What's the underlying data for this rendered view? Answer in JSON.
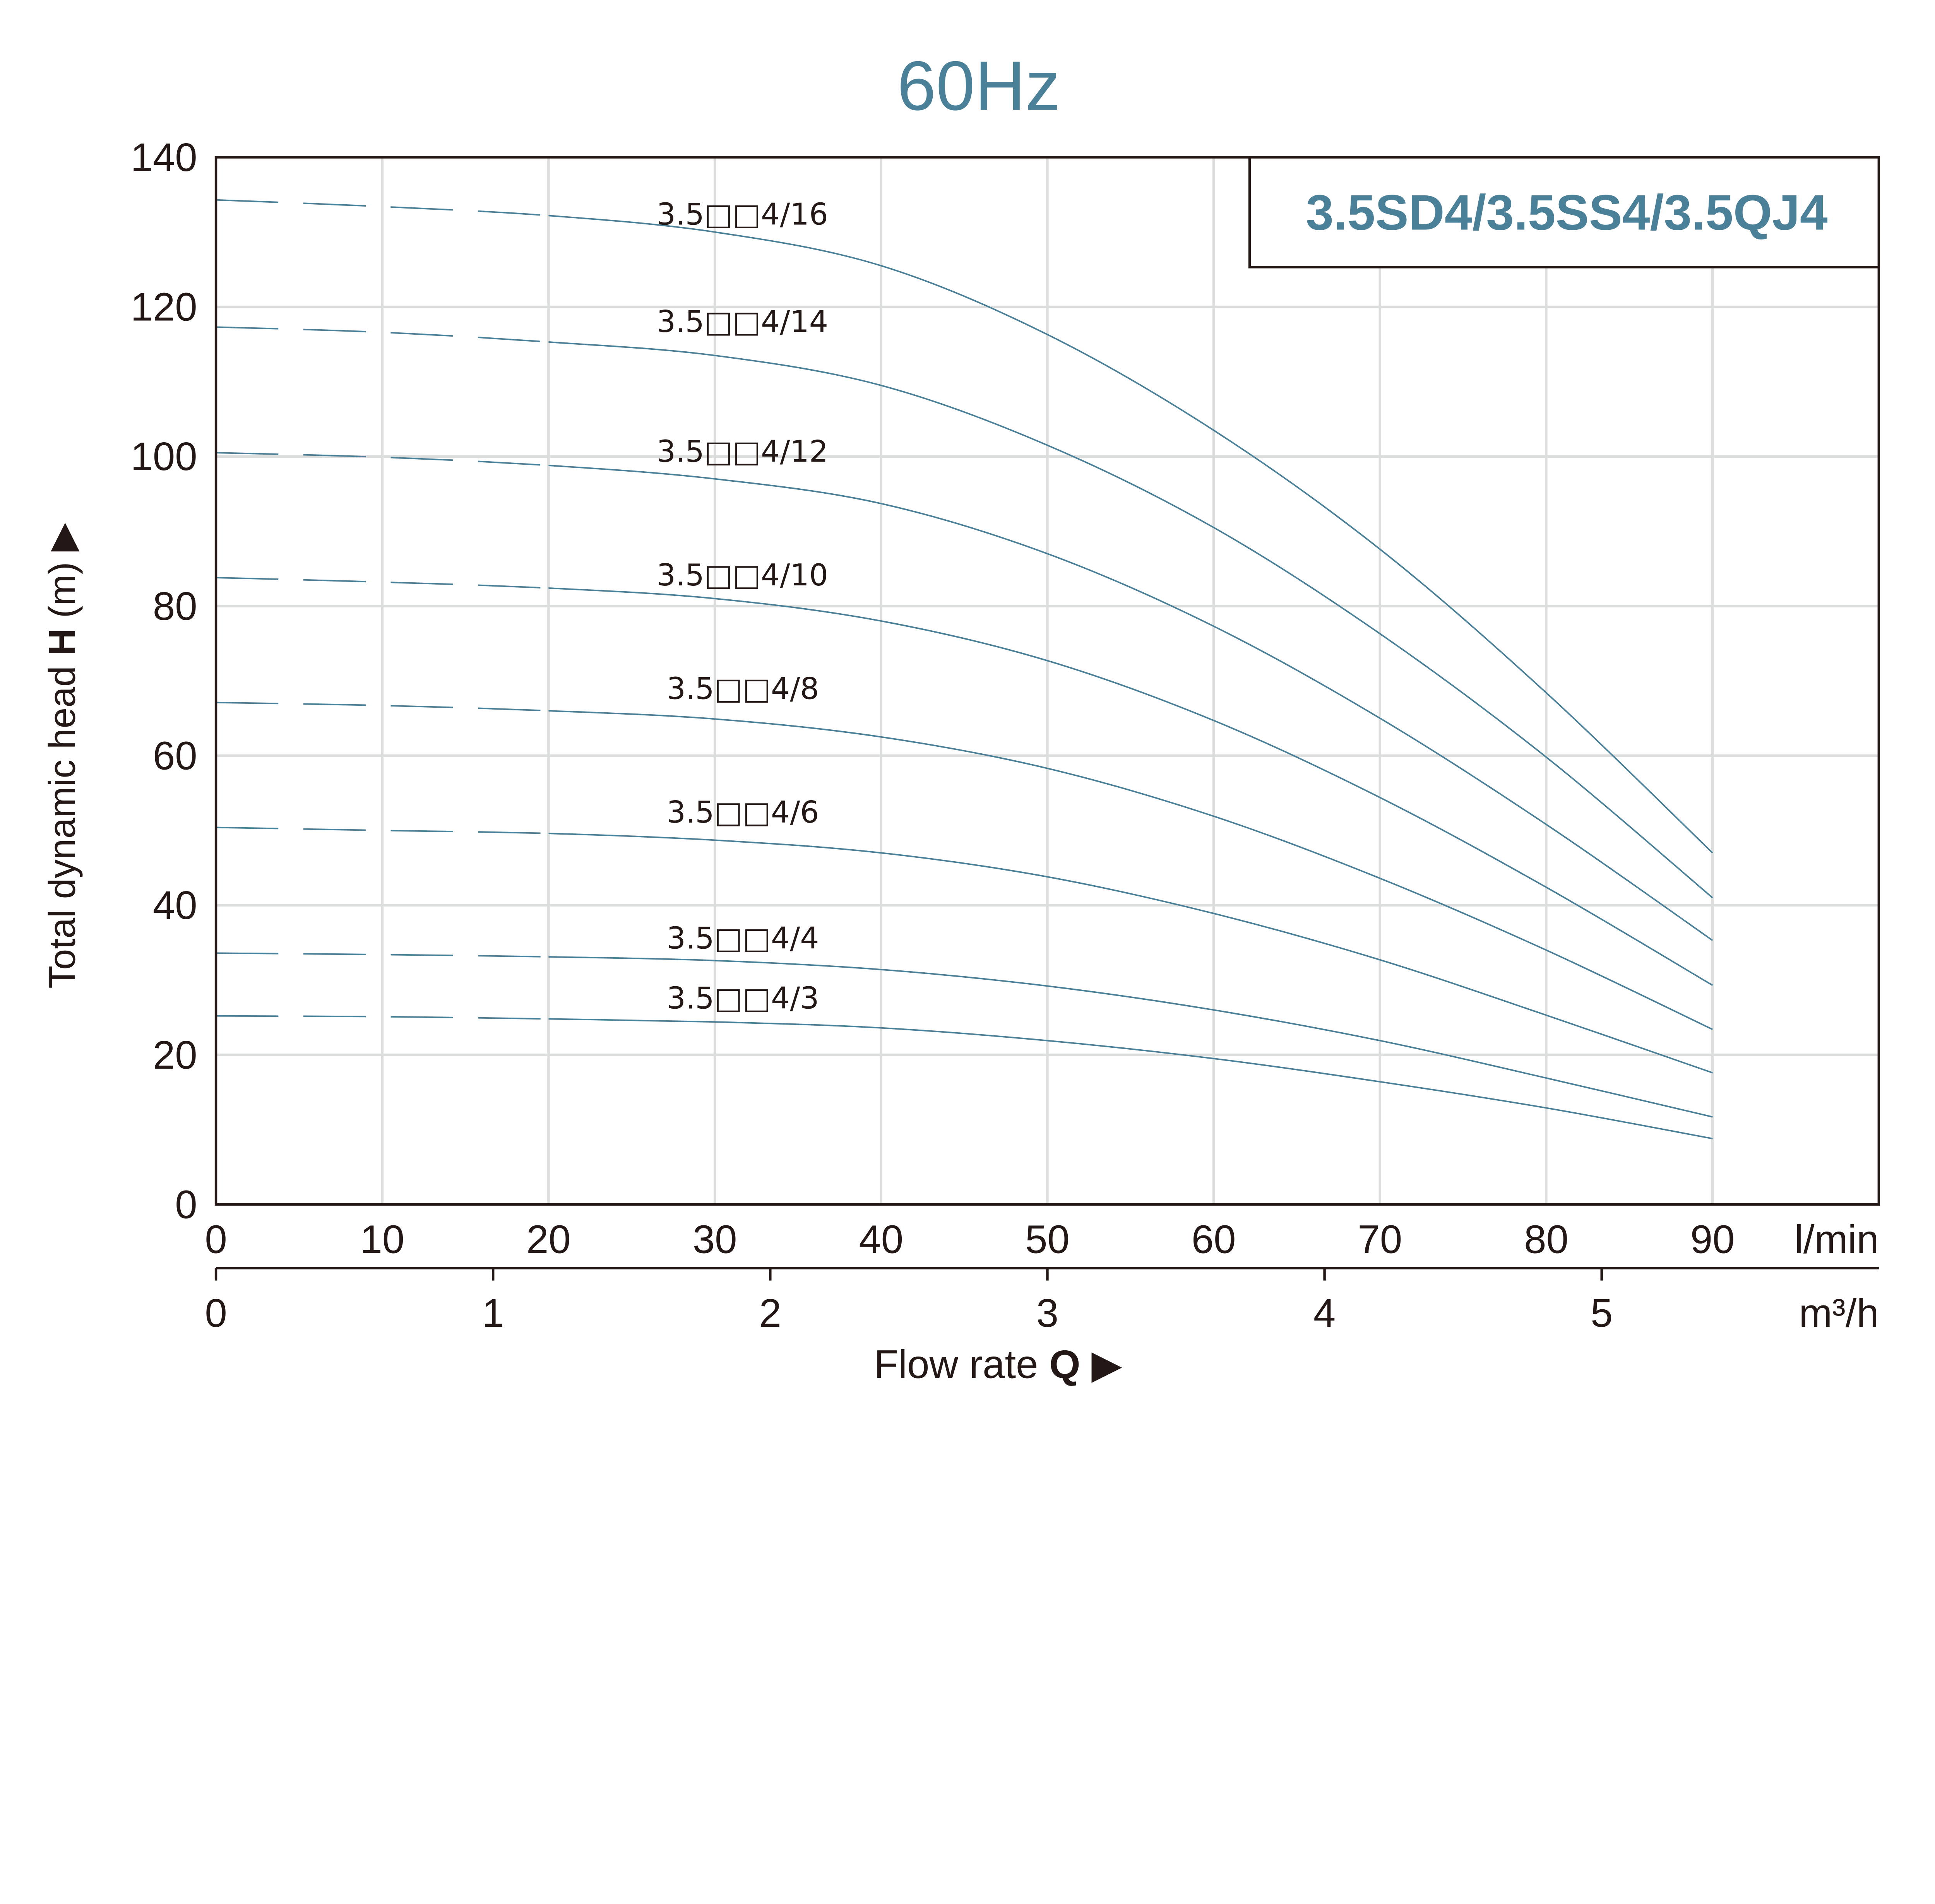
{
  "chart_data": {
    "type": "line",
    "title": "60Hz",
    "model_box": "3.5SD4/3.5SS4/3.5QJ4",
    "ylabel_prefix": "Total dynamic head ",
    "ylabel_bold": "H",
    "ylabel_suffix": " (m)",
    "xlabel_prefix": "Flow rate ",
    "xlabel_bold": "Q",
    "x_unit": "l/min",
    "x2_unit": "m³/h",
    "ylim": [
      0,
      140
    ],
    "xlim": [
      0,
      100
    ],
    "x2lim": [
      0,
      6
    ],
    "yticks": [
      "0",
      "20",
      "40",
      "60",
      "80",
      "100",
      "120",
      "140"
    ],
    "xticks": [
      "0",
      "10",
      "20",
      "30",
      "40",
      "50",
      "60",
      "70",
      "80",
      "90"
    ],
    "x2ticks": [
      "0",
      "1",
      "2",
      "3",
      "4",
      "5"
    ],
    "grid": true,
    "dashed_range": [
      0,
      20
    ],
    "colors": {
      "title": "#4a8098",
      "curve": "#4a8098",
      "grid": "#dcdddd",
      "axis": "#231815"
    },
    "x": [
      0,
      10,
      20,
      30,
      40,
      50,
      60,
      70,
      80,
      90
    ],
    "series": [
      {
        "name": "3.5□□4/16",
        "values": [
          134.3,
          133.4,
          132.2,
          130,
          125.5,
          116.3,
          103.5,
          87.6,
          68.4,
          47
        ]
      },
      {
        "name": "3.5□□4/14",
        "values": [
          117.3,
          116.6,
          115.3,
          113.5,
          109.5,
          101.5,
          90.5,
          76.3,
          59.8,
          41
        ]
      },
      {
        "name": "3.5□□4/12",
        "values": [
          100.5,
          99.9,
          98.8,
          97,
          93.7,
          87,
          77.3,
          65,
          50.8,
          35.3
        ]
      },
      {
        "name": "3.5□□4/10",
        "values": [
          83.8,
          83.2,
          82.4,
          81,
          78,
          72.7,
          64.7,
          54.4,
          42.4,
          29.3
        ]
      },
      {
        "name": "3.5□□4/8",
        "values": [
          67.1,
          66.7,
          66,
          64.9,
          62.5,
          58.3,
          51.9,
          43.6,
          34,
          23.4
        ]
      },
      {
        "name": "3.5□□4/6",
        "values": [
          50.4,
          50,
          49.6,
          48.7,
          47,
          43.8,
          38.9,
          32.7,
          25.3,
          17.6
        ]
      },
      {
        "name": "3.5□□4/4",
        "values": [
          33.6,
          33.4,
          33.1,
          32.6,
          31.4,
          29.2,
          26,
          21.9,
          16.9,
          11.7
        ]
      },
      {
        "name": "3.5□□4/3",
        "values": [
          25.2,
          25.1,
          24.8,
          24.4,
          23.6,
          21.9,
          19.5,
          16.4,
          12.9,
          8.8
        ]
      }
    ]
  }
}
